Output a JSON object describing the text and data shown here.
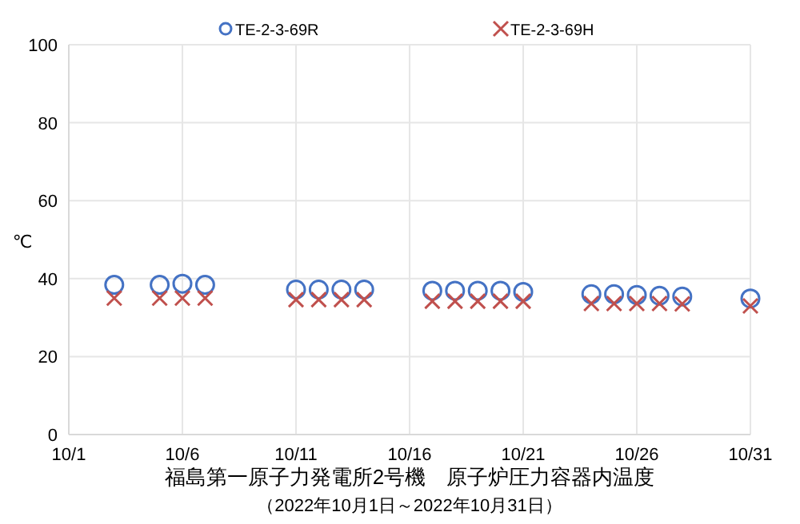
{
  "chart_data": {
    "type": "scatter",
    "title": "福島第一原子力発電所2号機　原子炉圧力容器内温度",
    "subtitle": "（2022年10月1日～2022年10月31日）",
    "ylabel": "℃",
    "x": [
      "2022-10-03",
      "2022-10-05",
      "2022-10-06",
      "2022-10-07",
      "2022-10-11",
      "2022-10-12",
      "2022-10-13",
      "2022-10-14",
      "2022-10-17",
      "2022-10-18",
      "2022-10-19",
      "2022-10-20",
      "2022-10-21",
      "2022-10-24",
      "2022-10-25",
      "2022-10-26",
      "2022-10-27",
      "2022-10-28",
      "2022-10-31"
    ],
    "series": [
      {
        "name": "TE-2-3-69R",
        "color": "#4472c4",
        "marker": "circle",
        "values": [
          38.4,
          38.4,
          38.7,
          38.4,
          37.2,
          37.2,
          37.2,
          37.2,
          36.9,
          36.9,
          36.9,
          36.9,
          36.6,
          36.0,
          36.0,
          35.8,
          35.6,
          35.4,
          34.9
        ]
      },
      {
        "name": "TE-2-3-69H",
        "color": "#c0504d",
        "marker": "cross",
        "values": [
          35.0,
          35.0,
          35.0,
          35.0,
          34.6,
          34.6,
          34.6,
          34.6,
          34.2,
          34.2,
          34.2,
          34.2,
          34.2,
          33.6,
          33.6,
          33.6,
          33.6,
          33.5,
          33.0
        ]
      }
    ],
    "xlim": [
      "2022-10-01",
      "2022-10-31"
    ],
    "xticks": [
      {
        "value": "2022-10-01",
        "label": "10/1"
      },
      {
        "value": "2022-10-06",
        "label": "10/6"
      },
      {
        "value": "2022-10-11",
        "label": "10/11"
      },
      {
        "value": "2022-10-16",
        "label": "10/16"
      },
      {
        "value": "2022-10-21",
        "label": "10/21"
      },
      {
        "value": "2022-10-26",
        "label": "10/26"
      },
      {
        "value": "2022-10-31",
        "label": "10/31"
      }
    ],
    "ylim": [
      0,
      100
    ],
    "yticks": [
      0,
      20,
      40,
      60,
      80,
      100
    ],
    "grid": true,
    "legend": "top"
  }
}
